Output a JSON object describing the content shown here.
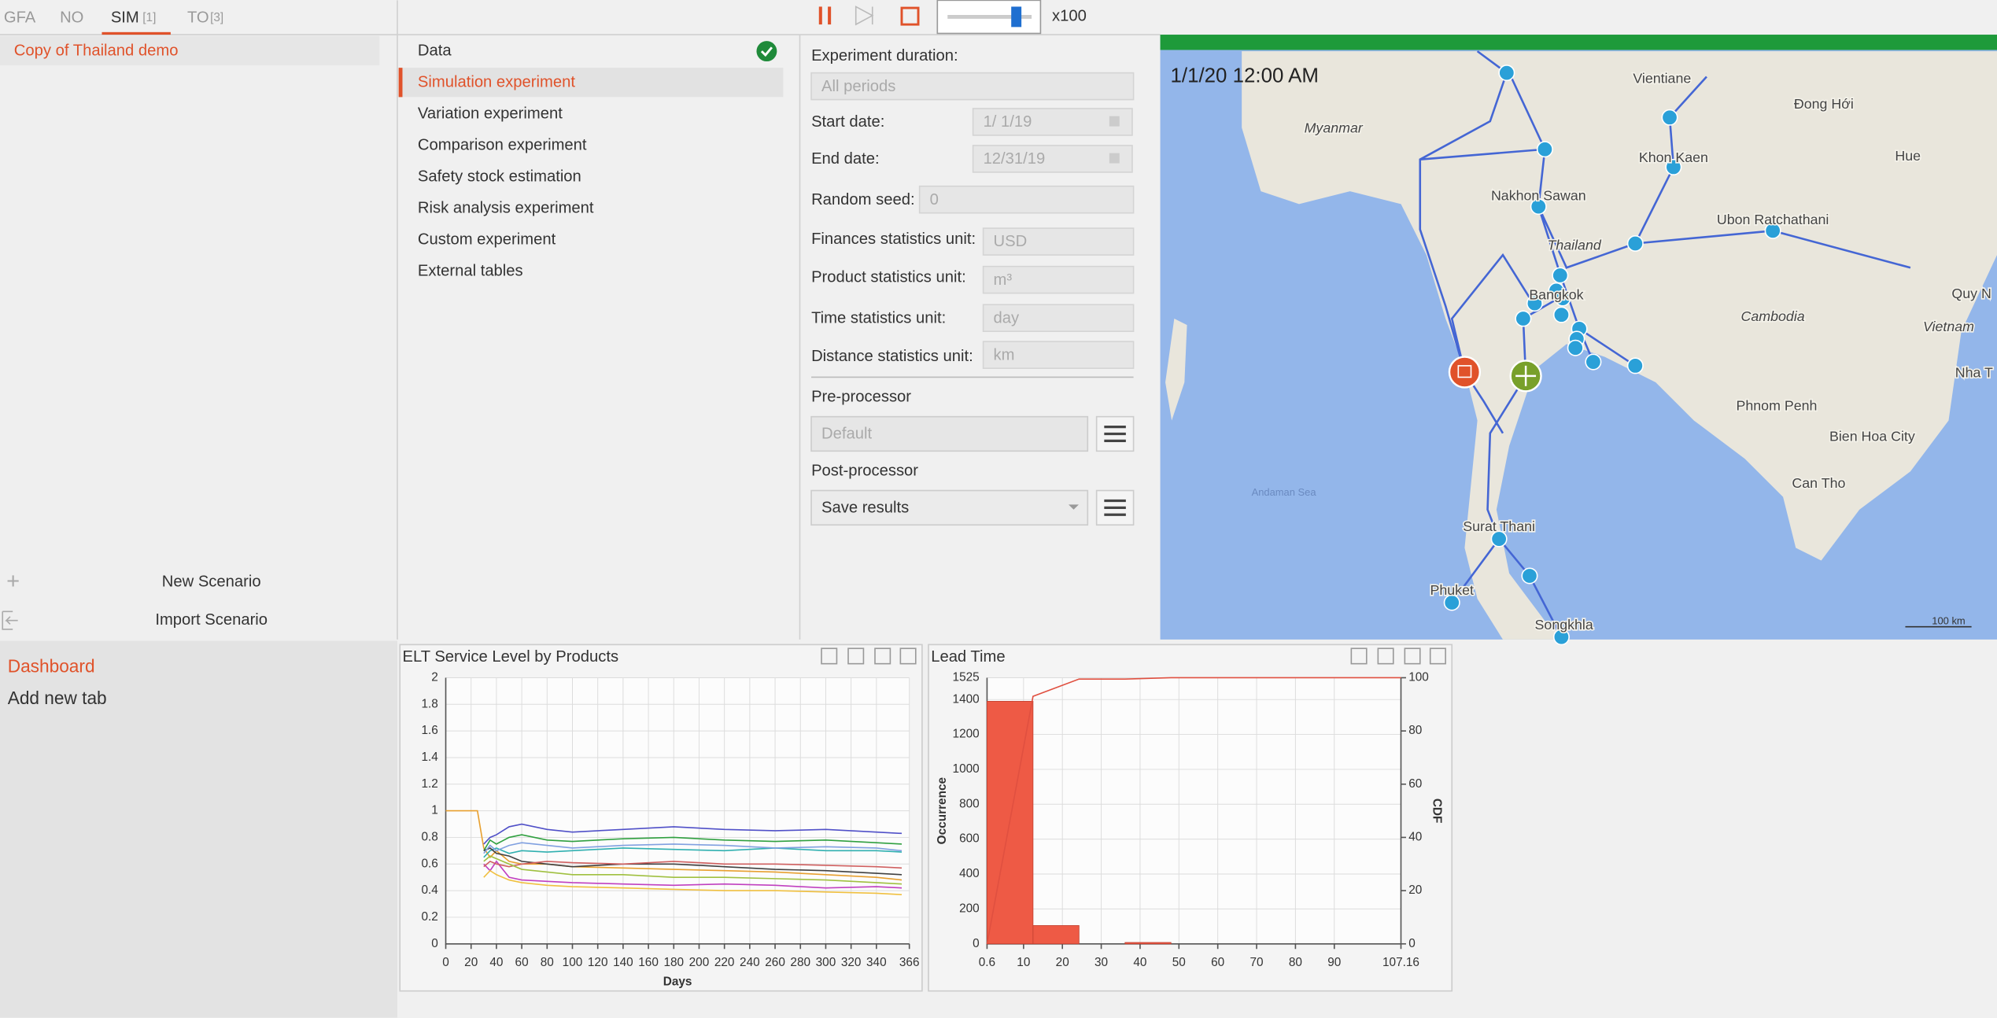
{
  "tabs": [
    {
      "label": "GFA"
    },
    {
      "label": "NO"
    },
    {
      "label": "SIM",
      "count": "[1]"
    },
    {
      "label": "TO",
      "count": "[3]"
    }
  ],
  "scenario": "Copy of Thailand demo",
  "scenario_actions": [
    "New Scenario",
    "Import Scenario"
  ],
  "experiments": [
    "Data",
    "Simulation experiment",
    "Variation experiment",
    "Comparison experiment",
    "Safety stock estimation",
    "Risk analysis experiment",
    "Custom experiment",
    "External tables"
  ],
  "toolbar": {
    "speed": "x100"
  },
  "settings": {
    "fields": [
      {
        "label": "Experiment duration:",
        "value": "All periods"
      },
      {
        "label": "Start date:",
        "value": "1/ 1/19"
      },
      {
        "label": "End date:",
        "value": "12/31/19"
      },
      {
        "label": "Random seed:",
        "value": "0"
      },
      {
        "label": "Finances statistics unit:",
        "value": "USD"
      },
      {
        "label": "Product statistics unit:",
        "value": "m³"
      },
      {
        "label": "Time statistics unit:",
        "value": "day"
      },
      {
        "label": "Distance statistics unit:",
        "value": "km"
      }
    ],
    "pre_processor": {
      "label": "Pre-processor",
      "value": "Default"
    },
    "post_processor": {
      "label": "Post-processor",
      "value": "Save results"
    }
  },
  "map": {
    "timestamp": "1/1/20 12:00 AM",
    "scale": "100 km",
    "labels": [
      "Myanmar",
      "Vientiane",
      "Đong Hới",
      "Hue",
      "Khon Kaen",
      "Nakhon Sawan",
      "Ubon Ratchathani",
      "Thailand",
      "Quy N",
      "Bangkok",
      "Cambodia",
      "Vietnam",
      "Nha T",
      "Phnom Penh",
      "Bien Hoa City",
      "Can Tho",
      "Andaman Sea",
      "Surat Thani",
      "Phuket",
      "Songkhla"
    ]
  },
  "dashboard_tabs": [
    "Dashboard",
    "Add new tab"
  ],
  "chart_data": [
    {
      "type": "line",
      "title": "ELT Service Level by Products",
      "x_label": "Days",
      "x": [
        0,
        25,
        30,
        35,
        40,
        50,
        60,
        80,
        100,
        140,
        180,
        220,
        260,
        300,
        340,
        360
      ],
      "xlim": [
        0,
        366
      ],
      "xticks": [
        0,
        20,
        40,
        60,
        80,
        100,
        120,
        140,
        160,
        180,
        200,
        220,
        240,
        260,
        280,
        300,
        320,
        340,
        366
      ],
      "ylim": [
        0,
        2
      ],
      "yticks": [
        0,
        0.2,
        0.4,
        0.6,
        0.8,
        1,
        1.2,
        1.4,
        1.6,
        1.8,
        2
      ],
      "grid": true,
      "series": [
        {
          "color": "#e8a030",
          "values": [
            1,
            1,
            0.72,
            0.65,
            0.7,
            0.62,
            0.6,
            0.6,
            0.58,
            0.57,
            0.56,
            0.55,
            0.54,
            0.52,
            0.5,
            0.48
          ]
        },
        {
          "color": "#5050c8",
          "values": [
            null,
            null,
            0.75,
            0.8,
            0.82,
            0.88,
            0.9,
            0.86,
            0.84,
            0.86,
            0.88,
            0.86,
            0.85,
            0.86,
            0.84,
            0.83
          ]
        },
        {
          "color": "#30a040",
          "values": [
            null,
            null,
            0.7,
            0.78,
            0.75,
            0.8,
            0.82,
            0.78,
            0.77,
            0.79,
            0.8,
            0.78,
            0.77,
            0.78,
            0.76,
            0.75
          ]
        },
        {
          "color": "#c040c0",
          "values": [
            null,
            null,
            0.6,
            0.55,
            0.62,
            0.5,
            0.48,
            0.47,
            0.46,
            0.45,
            0.44,
            0.45,
            0.44,
            0.42,
            0.43,
            0.42
          ]
        },
        {
          "color": "#30b0b0",
          "values": [
            null,
            null,
            0.65,
            0.7,
            0.72,
            0.68,
            0.7,
            0.69,
            0.7,
            0.72,
            0.71,
            0.7,
            0.72,
            0.7,
            0.7,
            0.69
          ]
        },
        {
          "color": "#404040",
          "values": [
            null,
            null,
            0.7,
            0.72,
            0.68,
            0.66,
            0.62,
            0.6,
            0.58,
            0.6,
            0.6,
            0.58,
            0.56,
            0.55,
            0.53,
            0.52
          ]
        },
        {
          "color": "#d06060",
          "values": [
            null,
            null,
            0.58,
            0.62,
            0.6,
            0.58,
            0.6,
            0.62,
            0.61,
            0.6,
            0.62,
            0.6,
            0.6,
            0.59,
            0.58,
            0.57
          ]
        },
        {
          "color": "#80a0e0",
          "values": [
            null,
            null,
            0.68,
            0.74,
            0.7,
            0.74,
            0.76,
            0.74,
            0.72,
            0.74,
            0.75,
            0.74,
            0.72,
            0.73,
            0.72,
            0.7
          ]
        },
        {
          "color": "#a0c040",
          "values": [
            null,
            null,
            0.62,
            0.66,
            0.64,
            0.6,
            0.56,
            0.54,
            0.52,
            0.52,
            0.5,
            0.5,
            0.49,
            0.48,
            0.46,
            0.45
          ]
        },
        {
          "color": "#f0c040",
          "values": [
            null,
            null,
            0.5,
            0.55,
            0.52,
            0.48,
            0.46,
            0.44,
            0.43,
            0.42,
            0.41,
            0.4,
            0.4,
            0.39,
            0.38,
            0.37
          ]
        }
      ]
    },
    {
      "type": "histogram",
      "title": "Lead Time",
      "y_label": "Occurrence",
      "y2_label": "CDF",
      "color": "#ee5a45",
      "bins": [
        0.6,
        12.44,
        24.28,
        36.12,
        47.96
      ],
      "counts": [
        1390,
        105,
        0,
        8
      ],
      "xlim": [
        0.6,
        107.16
      ],
      "xticks": [
        0.6,
        10,
        20,
        30,
        40,
        50,
        60,
        70,
        80,
        90,
        107.16
      ],
      "ylim": [
        0,
        1525
      ],
      "yticks": [
        0,
        200,
        400,
        600,
        800,
        1000,
        1200,
        1400,
        1525
      ],
      "y2lim": [
        0,
        100
      ],
      "y2ticks": [
        0,
        20,
        40,
        60,
        80,
        100
      ],
      "grid": true,
      "series": [
        {
          "axis": "y2",
          "color": "#e05040",
          "x": [
            0.6,
            12.44,
            24.28,
            36.12,
            47.96,
            107.16
          ],
          "values": [
            0,
            93,
            99.5,
            99.5,
            100,
            100
          ]
        }
      ]
    }
  ]
}
